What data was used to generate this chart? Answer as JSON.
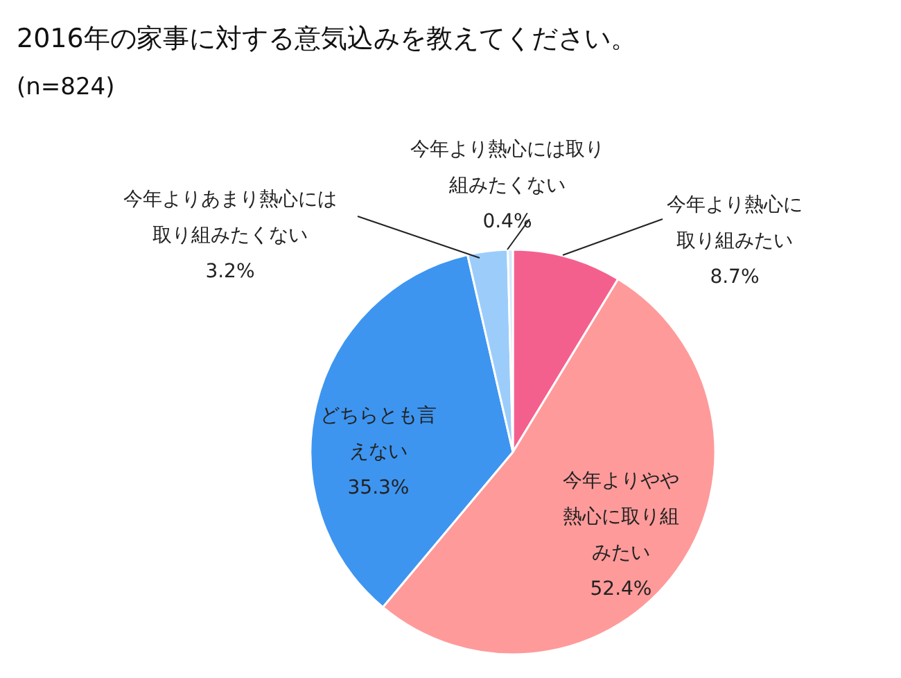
{
  "chart_data": {
    "type": "pie",
    "title": "2016年の家事に対する意気込みを教えてください。",
    "subtitle": "(n=824)",
    "categories": [
      "今年より熱心に取り組みたい",
      "今年よりやや熱心に取り組みたい",
      "どちらとも言えない",
      "今年よりあまり熱心には取り組みたくない",
      "今年より熱心には取り組みたくない"
    ],
    "values": [
      8.7,
      52.4,
      35.3,
      3.2,
      0.4
    ],
    "colors": [
      "#f4608e",
      "#ff9a9a",
      "#3d95f0",
      "#9ccdfa",
      "#d3e8fc"
    ],
    "value_labels": [
      "8.7%",
      "52.4%",
      "35.3%",
      "3.2%",
      "0.4%"
    ]
  }
}
